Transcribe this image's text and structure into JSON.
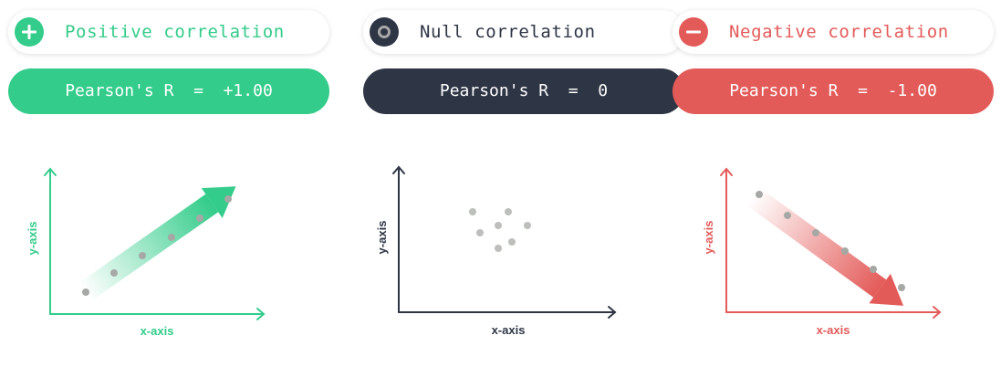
{
  "colors": {
    "positive": "#33CC8A",
    "null": "#2E3545",
    "negative": "#E35B59",
    "dot": "#A6A8A5"
  },
  "panels": {
    "positive": {
      "icon": "plus-circle-icon",
      "label": "Positive correlation",
      "pearson": "Pearson's R  =  +1.00",
      "xlabel": "x-axis",
      "ylabel": "y-axis"
    },
    "null": {
      "icon": "ring-circle-icon",
      "label": "Null correlation",
      "pearson": "Pearson's R  =  0",
      "xlabel": "x-axis",
      "ylabel": "y-axis"
    },
    "negative": {
      "icon": "minus-circle-icon",
      "label": "Negative correlation",
      "pearson": "Pearson's R  =  -1.00",
      "xlabel": "x-axis",
      "ylabel": "y-axis"
    }
  }
}
